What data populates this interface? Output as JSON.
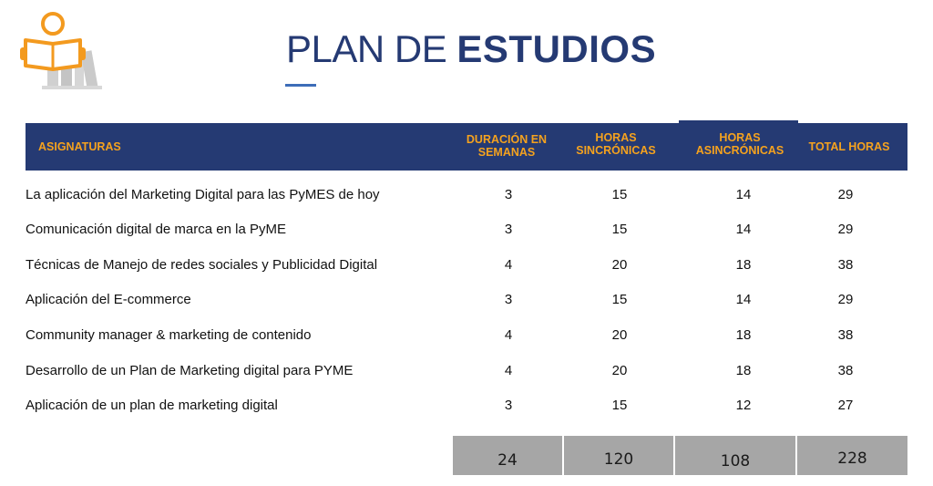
{
  "title": {
    "light": "PLAN DE",
    "bold": "ESTUDIOS"
  },
  "logo": {
    "icon": "reading-person-icon",
    "accent": "#f39a1f",
    "book_color": "#d0d0d0"
  },
  "colors": {
    "header_bg": "#253a73",
    "header_text": "#f5a21e",
    "totals_bg": "#a6a6a6"
  },
  "table": {
    "headers": {
      "subject": "ASIGNATURAS",
      "weeks_line1": "DURACIÓN EN",
      "weeks_line2": "SEMANAS",
      "sync_line1": "HORAS",
      "sync_line2": "SINCRÓNICAS",
      "async_line1": "HORAS",
      "async_line2": "ASINCRÓNICAS",
      "total": "TOTAL HORAS"
    },
    "rows": [
      {
        "subject": "La aplicación del Marketing Digital para las PyMES de hoy",
        "weeks": "3",
        "sync": "15",
        "async": "14",
        "total": "29"
      },
      {
        "subject": "Comunicación digital de marca en la PyME",
        "weeks": "3",
        "sync": "15",
        "async": "14",
        "total": "29"
      },
      {
        "subject": "Técnicas de Manejo de redes sociales y Publicidad Digital",
        "weeks": "4",
        "sync": "20",
        "async": "18",
        "total": "38"
      },
      {
        "subject": "Aplicación del E-commerce",
        "weeks": "3",
        "sync": "15",
        "async": "14",
        "total": "29"
      },
      {
        "subject": "Community manager & marketing de contenido",
        "weeks": "4",
        "sync": "20",
        "async": "18",
        "total": "38"
      },
      {
        "subject": "Desarrollo de un Plan de Marketing digital para PYME",
        "weeks": "4",
        "sync": "20",
        "async": "18",
        "total": "38"
      },
      {
        "subject": "Aplicación de un plan de marketing digital",
        "weeks": "3",
        "sync": "15",
        "async": "12",
        "total": "27"
      }
    ],
    "totals": {
      "weeks": "24",
      "sync": "120",
      "async": "108",
      "total": "228"
    }
  }
}
